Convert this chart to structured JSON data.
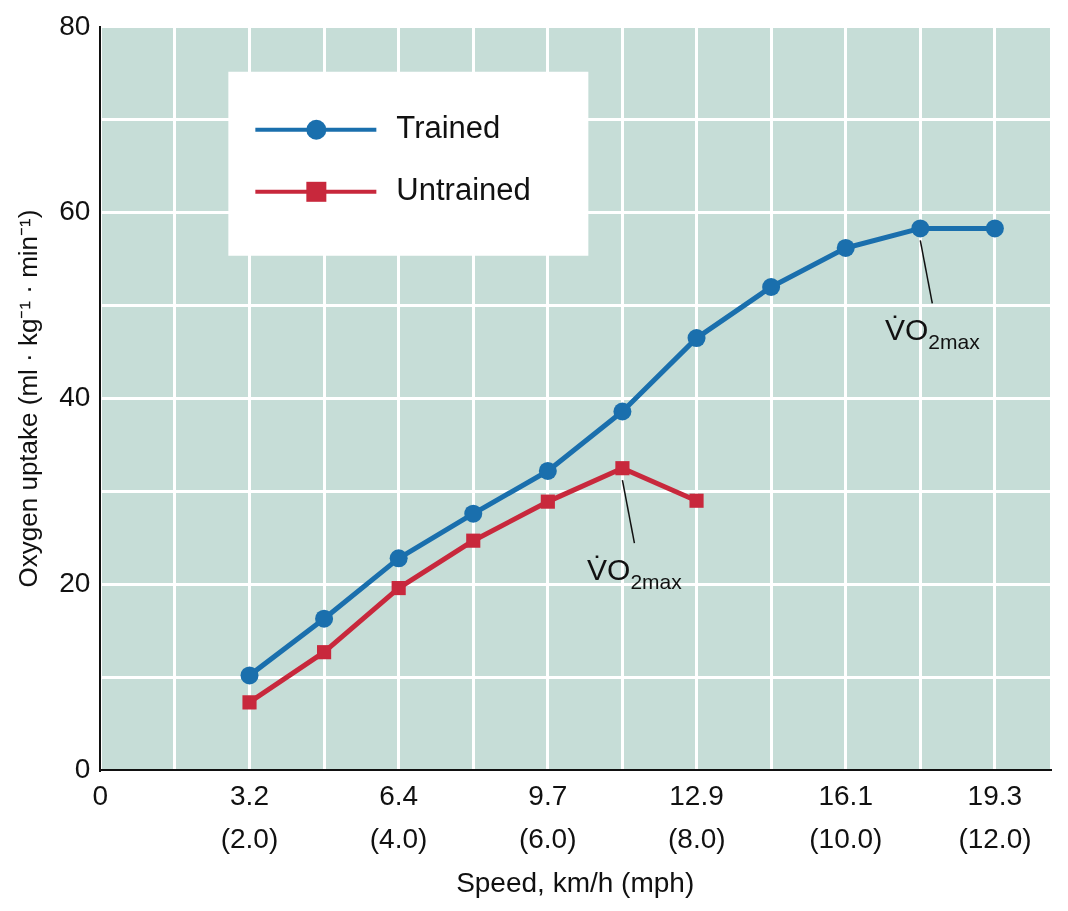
{
  "chart_data": {
    "type": "line",
    "xlabel": "Speed, km/h (mph)",
    "ylabel": "Oxygen uptake (ml · kg⁻¹ · min⁻¹)",
    "x": [
      3.22,
      4.83,
      6.44,
      8.05,
      9.66,
      11.27,
      12.87,
      14.48,
      16.09,
      17.7,
      19.31
    ],
    "series": [
      {
        "name": "Trained",
        "color": "#1a6fad",
        "marker": "circle",
        "values": [
          10.2,
          16.3,
          22.8,
          27.6,
          32.2,
          38.6,
          46.5,
          52.0,
          56.2,
          58.3,
          58.3
        ]
      },
      {
        "name": "Untrained",
        "color": "#c8283c",
        "marker": "square",
        "values": [
          7.3,
          12.7,
          19.6,
          24.7,
          28.9,
          32.5,
          29.0,
          null,
          null,
          null,
          null
        ]
      }
    ],
    "xlim": [
      0,
      20.5
    ],
    "xticks": [
      0,
      {
        "value": 1.61,
        "label": null
      },
      {
        "value": 3.22,
        "label": "3.2"
      },
      {
        "value": 4.83,
        "label": null
      },
      {
        "value": 6.44,
        "label": "6.4"
      },
      {
        "value": 8.05,
        "label": null
      },
      {
        "value": 9.66,
        "label": "9.7"
      },
      {
        "value": 11.27,
        "label": null
      },
      {
        "value": 12.87,
        "label": "12.9"
      },
      {
        "value": 14.48,
        "label": null
      },
      {
        "value": 16.09,
        "label": "16.1"
      },
      {
        "value": 17.7,
        "label": null
      },
      {
        "value": 19.31,
        "label": "19.3"
      }
    ],
    "x2lim": [
      0,
      12.738
    ],
    "x2ticks": [
      {
        "value": 2.0,
        "label": "(2.0)"
      },
      {
        "value": 4.0,
        "label": "(4.0)"
      },
      {
        "value": 6.0,
        "label": "(6.0)"
      },
      {
        "value": 8.0,
        "label": "(8.0)"
      },
      {
        "value": 10.0,
        "label": "(10.0)"
      },
      {
        "value": 12.0,
        "label": "(12.0)"
      }
    ],
    "ylim": [
      0,
      80
    ],
    "yticks": [
      0,
      {
        "value": 10,
        "label": null
      },
      20,
      {
        "value": 30,
        "label": null
      },
      40,
      {
        "value": 50,
        "label": null
      },
      60,
      {
        "value": 70,
        "label": null
      },
      80
    ],
    "grid": true,
    "legend": "top left",
    "line_style": "solid",
    "annotations": [
      {
        "text": "V̇O$_{2max}$",
        "x": 11.27,
        "y": 32.5
      },
      {
        "text": "V̇O$_{2max}$",
        "x": 17.7,
        "y": 58.3
      }
    ]
  }
}
